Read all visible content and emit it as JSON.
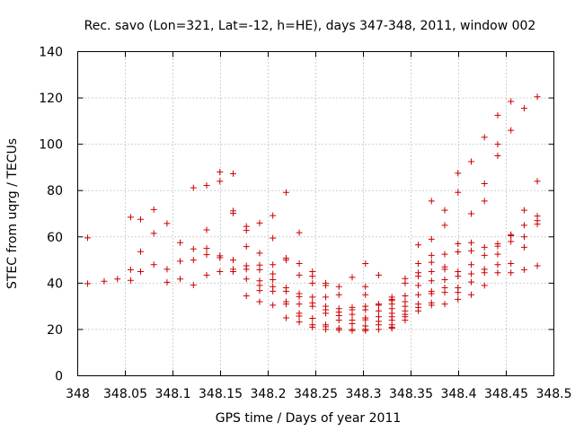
{
  "chart_data": {
    "type": "scatter",
    "title": "Rec. savo (Lon=321, Lat=-12, h=HE), days 347-348, 2011, window 002",
    "xlabel": "GPS time / Days of year 2011",
    "ylabel": "STEC from uqrg / TECUs",
    "xlim": [
      348,
      348.5
    ],
    "ylim": [
      0,
      140
    ],
    "xticks": [
      348,
      348.05,
      348.1,
      348.15,
      348.2,
      348.25,
      348.3,
      348.35,
      348.4,
      348.45,
      348.5
    ],
    "xtick_labels": [
      "348",
      "348.05",
      "348.1",
      "348.15",
      "348.2",
      "348.25",
      "348.3",
      "348.35",
      "348.4",
      "348.45",
      "348.5"
    ],
    "yticks": [
      0,
      20,
      40,
      60,
      80,
      100,
      120,
      140
    ],
    "ytick_labels": [
      "0",
      "20",
      "40",
      "60",
      "80",
      "100",
      "120",
      "140"
    ],
    "grid": true,
    "marker": "+",
    "color": "#cc0000",
    "series": [
      {
        "name": "STEC",
        "points": [
          [
            348.0104,
            59.6
          ],
          [
            348.0104,
            39.8
          ],
          [
            348.0278,
            40.8
          ],
          [
            348.0417,
            41.8
          ],
          [
            348.0556,
            68.5
          ],
          [
            348.0556,
            45.8
          ],
          [
            348.0556,
            41.2
          ],
          [
            348.066,
            67.6
          ],
          [
            348.066,
            53.6
          ],
          [
            348.066,
            45.0
          ],
          [
            348.0799,
            71.8
          ],
          [
            348.0799,
            61.5
          ],
          [
            348.0799,
            48.0
          ],
          [
            348.0938,
            65.8
          ],
          [
            348.0938,
            46.0
          ],
          [
            348.0938,
            40.4
          ],
          [
            348.1076,
            57.5
          ],
          [
            348.1076,
            49.5
          ],
          [
            348.1076,
            41.8
          ],
          [
            348.1215,
            81.2
          ],
          [
            348.1215,
            54.8
          ],
          [
            348.1215,
            50.0
          ],
          [
            348.1215,
            39.2
          ],
          [
            348.1354,
            82.2
          ],
          [
            348.1354,
            63.0
          ],
          [
            348.1354,
            55.0
          ],
          [
            348.1354,
            52.3
          ],
          [
            348.1354,
            43.5
          ],
          [
            348.1493,
            88.0
          ],
          [
            348.1493,
            84.0
          ],
          [
            348.1493,
            51.8
          ],
          [
            348.1493,
            51.0
          ],
          [
            348.1493,
            45.0
          ],
          [
            348.1632,
            87.3
          ],
          [
            348.1632,
            71.2
          ],
          [
            348.1632,
            70.2
          ],
          [
            348.1632,
            50.0
          ],
          [
            348.1632,
            46.0
          ],
          [
            348.1632,
            45.0
          ],
          [
            348.1771,
            64.5
          ],
          [
            348.1771,
            62.8
          ],
          [
            348.1771,
            55.8
          ],
          [
            348.1771,
            47.5
          ],
          [
            348.1771,
            46.0
          ],
          [
            348.1771,
            41.8
          ],
          [
            348.1771,
            34.5
          ],
          [
            348.191,
            66.0
          ],
          [
            348.191,
            53.0
          ],
          [
            348.191,
            47.8
          ],
          [
            348.191,
            45.8
          ],
          [
            348.191,
            41.0
          ],
          [
            348.191,
            39.0
          ],
          [
            348.191,
            36.8
          ],
          [
            348.191,
            32.0
          ],
          [
            348.2049,
            69.2
          ],
          [
            348.2049,
            59.5
          ],
          [
            348.2049,
            48.0
          ],
          [
            348.2049,
            44.0
          ],
          [
            348.2049,
            41.5
          ],
          [
            348.2049,
            38.5
          ],
          [
            348.2049,
            36.5
          ],
          [
            348.2049,
            30.5
          ],
          [
            348.2188,
            79.2
          ],
          [
            348.2188,
            50.8
          ],
          [
            348.2188,
            50.0
          ],
          [
            348.2188,
            38.0
          ],
          [
            348.2188,
            36.5
          ],
          [
            348.2188,
            32.0
          ],
          [
            348.2188,
            31.0
          ],
          [
            348.2188,
            25.0
          ],
          [
            348.2326,
            61.8
          ],
          [
            348.2326,
            48.5
          ],
          [
            348.2326,
            43.5
          ],
          [
            348.2326,
            35.5
          ],
          [
            348.2326,
            34.2
          ],
          [
            348.2326,
            31.0
          ],
          [
            348.2326,
            27.0
          ],
          [
            348.2326,
            25.8
          ],
          [
            348.2326,
            23.2
          ],
          [
            348.2465,
            45.0
          ],
          [
            348.2465,
            43.0
          ],
          [
            348.2465,
            40.0
          ],
          [
            348.2465,
            34.0
          ],
          [
            348.2465,
            31.5
          ],
          [
            348.2465,
            30.0
          ],
          [
            348.2465,
            24.8
          ],
          [
            348.2465,
            22.0
          ],
          [
            348.2465,
            21.0
          ],
          [
            348.2604,
            40.0
          ],
          [
            348.2604,
            39.0
          ],
          [
            348.2604,
            34.0
          ],
          [
            348.2604,
            30.0
          ],
          [
            348.2604,
            28.5
          ],
          [
            348.2604,
            27.0
          ],
          [
            348.2604,
            22.0
          ],
          [
            348.2604,
            21.2
          ],
          [
            348.2604,
            20.0
          ],
          [
            348.2743,
            38.5
          ],
          [
            348.2743,
            35.0
          ],
          [
            348.2743,
            29.0
          ],
          [
            348.2743,
            27.5
          ],
          [
            348.2743,
            26.0
          ],
          [
            348.2743,
            24.0
          ],
          [
            348.2743,
            20.5
          ],
          [
            348.2743,
            19.8
          ],
          [
            348.2882,
            42.5
          ],
          [
            348.2882,
            29.5
          ],
          [
            348.2882,
            28.5
          ],
          [
            348.2882,
            26.5
          ],
          [
            348.2882,
            24.0
          ],
          [
            348.2882,
            22.5
          ],
          [
            348.2882,
            20.0
          ],
          [
            348.2882,
            19.5
          ],
          [
            348.3021,
            48.5
          ],
          [
            348.3021,
            38.5
          ],
          [
            348.3021,
            35.0
          ],
          [
            348.3021,
            30.0
          ],
          [
            348.3021,
            28.5
          ],
          [
            348.3021,
            25.0
          ],
          [
            348.3021,
            24.2
          ],
          [
            348.3021,
            21.5
          ],
          [
            348.3021,
            20.0
          ],
          [
            348.3021,
            19.5
          ],
          [
            348.316,
            43.5
          ],
          [
            348.316,
            31.0
          ],
          [
            348.316,
            30.5
          ],
          [
            348.316,
            28.0
          ],
          [
            348.316,
            25.5
          ],
          [
            348.316,
            23.5
          ],
          [
            348.316,
            22.0
          ],
          [
            348.316,
            20.0
          ],
          [
            348.3299,
            34.0
          ],
          [
            348.3299,
            33.0
          ],
          [
            348.3299,
            32.5
          ],
          [
            348.3299,
            31.0
          ],
          [
            348.3299,
            29.0
          ],
          [
            348.3299,
            27.0
          ],
          [
            348.3299,
            25.5
          ],
          [
            348.3299,
            24.0
          ],
          [
            348.3299,
            22.0
          ],
          [
            348.3299,
            21.0
          ],
          [
            348.3299,
            20.5
          ],
          [
            348.3438,
            42.0
          ],
          [
            348.3438,
            40.0
          ],
          [
            348.3438,
            34.5
          ],
          [
            348.3438,
            32.0
          ],
          [
            348.3438,
            30.0
          ],
          [
            348.3438,
            28.0
          ],
          [
            348.3438,
            26.5
          ],
          [
            348.3438,
            25.5
          ],
          [
            348.3438,
            24.0
          ],
          [
            348.3576,
            56.5
          ],
          [
            348.3576,
            48.5
          ],
          [
            348.3576,
            44.5
          ],
          [
            348.3576,
            43.0
          ],
          [
            348.3576,
            39.0
          ],
          [
            348.3576,
            35.0
          ],
          [
            348.3576,
            31.0
          ],
          [
            348.3576,
            29.5
          ],
          [
            348.3576,
            28.0
          ],
          [
            348.3715,
            75.5
          ],
          [
            348.3715,
            59.0
          ],
          [
            348.3715,
            52.0
          ],
          [
            348.3715,
            49.0
          ],
          [
            348.3715,
            45.0
          ],
          [
            348.3715,
            41.0
          ],
          [
            348.3715,
            36.5
          ],
          [
            348.3715,
            35.5
          ],
          [
            348.3715,
            31.5
          ],
          [
            348.3715,
            30.5
          ],
          [
            348.3854,
            71.5
          ],
          [
            348.3854,
            65.0
          ],
          [
            348.3854,
            52.5
          ],
          [
            348.3854,
            47.0
          ],
          [
            348.3854,
            46.0
          ],
          [
            348.3854,
            41.5
          ],
          [
            348.3854,
            38.0
          ],
          [
            348.3854,
            36.0
          ],
          [
            348.3854,
            31.0
          ],
          [
            348.3993,
            87.5
          ],
          [
            348.3993,
            79.2
          ],
          [
            348.3993,
            57.0
          ],
          [
            348.3993,
            53.5
          ],
          [
            348.3993,
            45.0
          ],
          [
            348.3993,
            43.0
          ],
          [
            348.3993,
            38.0
          ],
          [
            348.3993,
            36.0
          ],
          [
            348.3993,
            33.0
          ],
          [
            348.4132,
            92.5
          ],
          [
            348.4132,
            70.0
          ],
          [
            348.4132,
            57.5
          ],
          [
            348.4132,
            54.0
          ],
          [
            348.4132,
            48.0
          ],
          [
            348.4132,
            44.0
          ],
          [
            348.4132,
            40.5
          ],
          [
            348.4132,
            35.0
          ],
          [
            348.4271,
            103.0
          ],
          [
            348.4271,
            83.0
          ],
          [
            348.4271,
            75.5
          ],
          [
            348.4271,
            55.5
          ],
          [
            348.4271,
            52.0
          ],
          [
            348.4271,
            46.0
          ],
          [
            348.4271,
            44.5
          ],
          [
            348.4271,
            39.0
          ],
          [
            348.441,
            112.5
          ],
          [
            348.441,
            100.0
          ],
          [
            348.441,
            95.0
          ],
          [
            348.441,
            57.0
          ],
          [
            348.441,
            56.0
          ],
          [
            348.441,
            52.5
          ],
          [
            348.441,
            48.0
          ],
          [
            348.441,
            44.5
          ],
          [
            348.4549,
            118.5
          ],
          [
            348.4549,
            106.0
          ],
          [
            348.4549,
            61.0
          ],
          [
            348.4549,
            60.5
          ],
          [
            348.4549,
            58.0
          ],
          [
            348.4549,
            48.5
          ],
          [
            348.4549,
            44.5
          ],
          [
            348.4688,
            115.5
          ],
          [
            348.4688,
            71.5
          ],
          [
            348.4688,
            65.0
          ],
          [
            348.4688,
            60.0
          ],
          [
            348.4688,
            55.5
          ],
          [
            348.4688,
            45.8
          ],
          [
            348.4826,
            120.5
          ],
          [
            348.4826,
            84.0
          ],
          [
            348.4826,
            69.0
          ],
          [
            348.4826,
            67.0
          ],
          [
            348.4826,
            65.5
          ],
          [
            348.4826,
            47.5
          ]
        ]
      }
    ]
  }
}
